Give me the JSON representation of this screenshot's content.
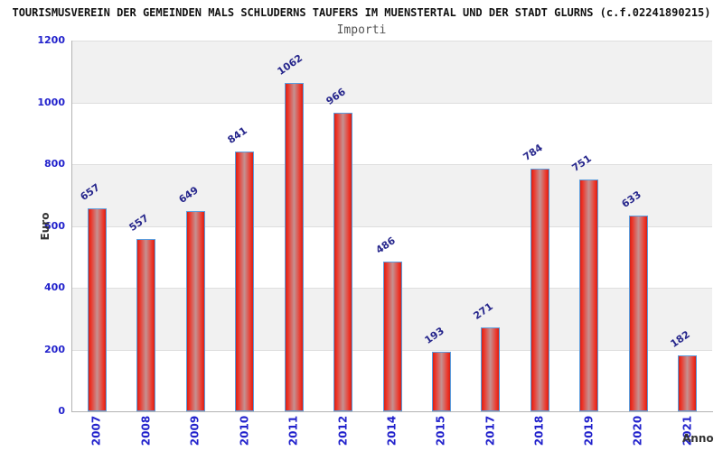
{
  "header": {
    "title": "TOURISMUSVEREIN DER GEMEINDEN MALS SCHLUDERNS TAUFERS IM MUENSTERTAL UND DER STADT GLURNS (c.f.02241890215)",
    "subtitle": "Importi"
  },
  "chart_data": {
    "type": "bar",
    "title": "Importi",
    "categories": [
      "2007",
      "2008",
      "2009",
      "2010",
      "2011",
      "2012",
      "2014",
      "2015",
      "2017",
      "2018",
      "2019",
      "2020",
      "2021"
    ],
    "values": [
      657,
      557,
      649,
      841,
      1062,
      966,
      486,
      193,
      271,
      784,
      751,
      633,
      182
    ],
    "xlabel": "Anno",
    "ylabel": "Euro",
    "ylim": [
      0,
      1200
    ],
    "yticks": [
      0,
      200,
      400,
      600,
      800,
      1000,
      1200
    ],
    "grid": "alternating-horizontal-bands",
    "legend_position": "none",
    "colors": {
      "bar_fill_edge": "#e2281c",
      "bar_fill_center": "#c59191",
      "bar_border": "#5c9ddd",
      "band_gray": "#f1f1f1",
      "band_white": "#ffffff",
      "gridline": "#dedede",
      "axis_line": "#b3b3b3",
      "tick_label": "#2222cc",
      "value_label": "#26268c",
      "title_color": "#111111",
      "subtitle_color": "#555555",
      "axis_title_color": "#333333"
    }
  }
}
